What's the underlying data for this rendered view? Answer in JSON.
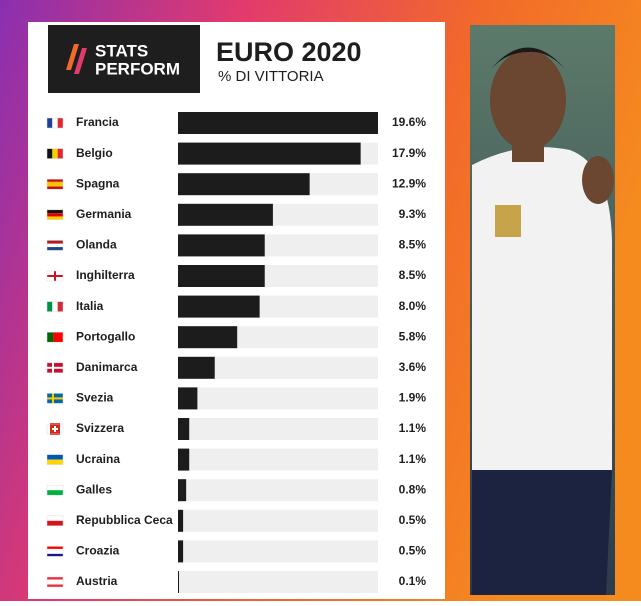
{
  "chart_data": {
    "type": "bar",
    "orientation": "horizontal",
    "title": "EURO 2020",
    "subtitle": "% DI VITTORIA",
    "logo_lines": [
      "STATS",
      "PERFORM"
    ],
    "categories": [
      "Francia",
      "Belgio",
      "Spagna",
      "Germania",
      "Olanda",
      "Inghilterra",
      "Italia",
      "Portogallo",
      "Danimarca",
      "Svezia",
      "Svizzera",
      "Ucraina",
      "Galles",
      "Repubblica Ceca",
      "Croazia",
      "Austria"
    ],
    "values": [
      19.6,
      17.9,
      12.9,
      9.3,
      8.5,
      8.5,
      8.0,
      5.8,
      3.6,
      1.9,
      1.1,
      1.1,
      0.8,
      0.5,
      0.5,
      0.1
    ],
    "value_labels": [
      "19.6%",
      "17.9%",
      "12.9%",
      "9.3%",
      "8.5%",
      "8.5%",
      "8.0%",
      "5.8%",
      "3.6%",
      "1.9%",
      "1.1%",
      "1.1%",
      "0.8%",
      "0.5%",
      "0.5%",
      "0.1%"
    ],
    "color": "#1c1c1c",
    "track_color": "#efefef"
  }
}
